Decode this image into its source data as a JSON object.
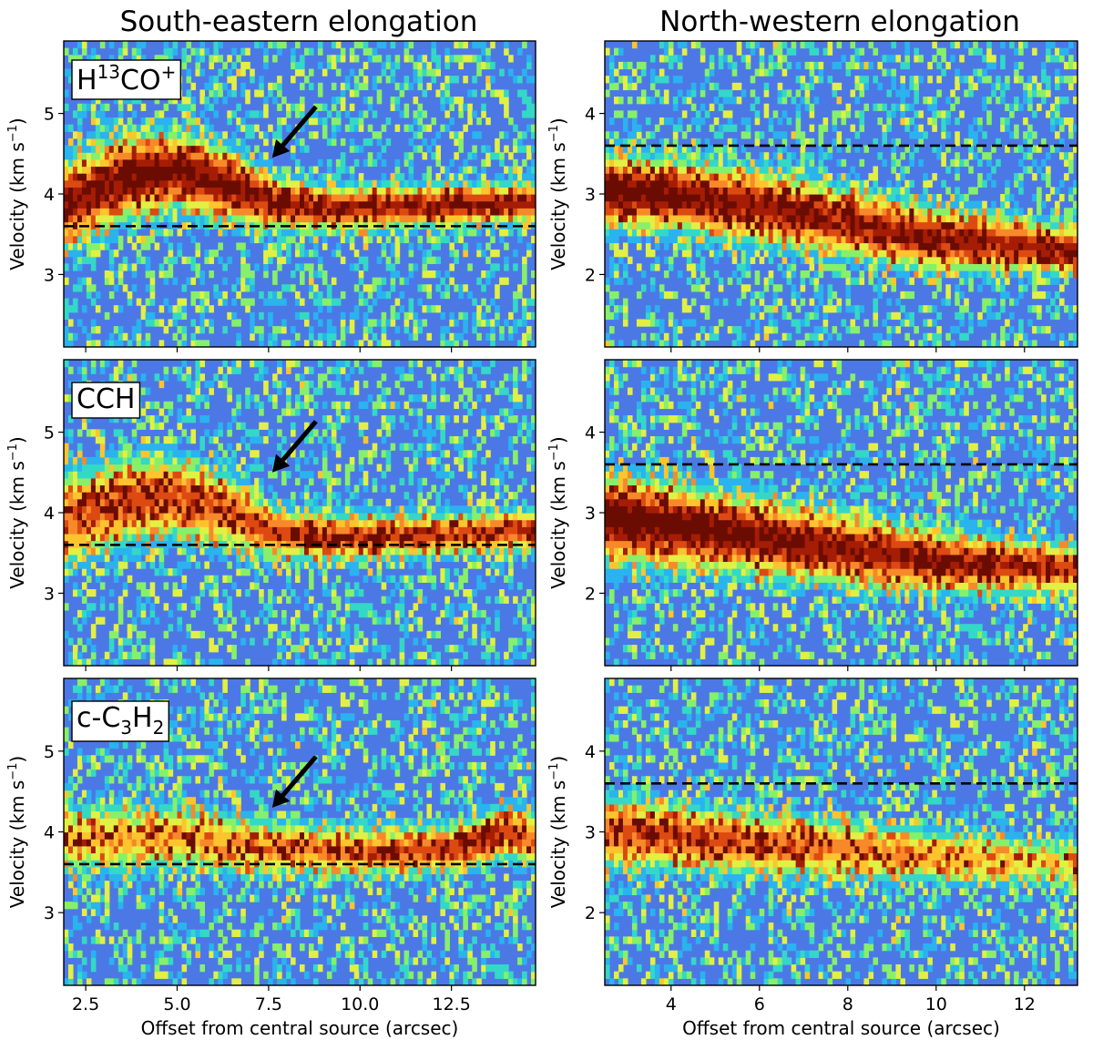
{
  "figure": {
    "column_titles": [
      "South-eastern elongation",
      "North-western elongation"
    ],
    "xlabel": "Offset from central source (arcsec)",
    "ylabel_main": "Velocity (km s",
    "ylabel_sup": "−1",
    "ylabel_close": ")"
  },
  "colors": {
    "background_low": "#4c78e6",
    "colormap": [
      "#4c78e6",
      "#2ab3ee",
      "#34d8c6",
      "#86f06a",
      "#e2f043",
      "#fdc42e",
      "#f8892a",
      "#dc4a12",
      "#a51d05",
      "#6b0c02"
    ],
    "dashed_line": "#000000",
    "arrow": "#000000"
  },
  "chart_data": [
    {
      "type": "heatmap",
      "panel": "se-h13co",
      "molecule": "H13CO+",
      "molecule_label": {
        "base": "H",
        "sup1": "13",
        "mid": "CO",
        "sup2": "+"
      },
      "xlim": [
        1.9,
        14.8
      ],
      "ylim": [
        2.1,
        5.9
      ],
      "xticks": [
        2.5,
        5.0,
        7.5,
        10.0,
        12.5
      ],
      "yticks": [
        3,
        4,
        5
      ],
      "systemic_velocity": 3.6,
      "arrow_target": [
        7.6,
        4.45
      ],
      "ridge": [
        [
          1.9,
          3.85
        ],
        [
          3.5,
          4.2
        ],
        [
          5.0,
          4.3
        ],
        [
          6.5,
          4.1
        ],
        [
          7.6,
          3.9
        ],
        [
          9.0,
          3.82
        ],
        [
          12.0,
          3.85
        ],
        [
          14.8,
          3.9
        ]
      ],
      "ridge_width": [
        [
          1.9,
          0.55
        ],
        [
          4.0,
          0.5
        ],
        [
          6.5,
          0.45
        ],
        [
          7.6,
          0.35
        ],
        [
          9.0,
          0.28
        ],
        [
          14.8,
          0.25
        ]
      ],
      "ridge_peak": [
        [
          1.9,
          0.85
        ],
        [
          4.0,
          0.95
        ],
        [
          6.5,
          0.9
        ],
        [
          8.0,
          0.85
        ],
        [
          10.0,
          0.85
        ],
        [
          14.8,
          0.85
        ]
      ],
      "show_xticklabels": false,
      "show_xlabel": false
    },
    {
      "type": "heatmap",
      "panel": "nw-h13co",
      "molecule": "H13CO+",
      "xlim": [
        2.5,
        13.2
      ],
      "ylim": [
        1.1,
        4.9
      ],
      "xticks": [
        4,
        6,
        8,
        10,
        12
      ],
      "yticks": [
        2,
        3,
        4
      ],
      "systemic_velocity": 3.6,
      "ridge": [
        [
          2.5,
          3.05
        ],
        [
          4.0,
          3.0
        ],
        [
          6.0,
          2.85
        ],
        [
          8.0,
          2.65
        ],
        [
          10.0,
          2.45
        ],
        [
          13.2,
          2.3
        ]
      ],
      "ridge_width": [
        [
          2.5,
          0.45
        ],
        [
          8.0,
          0.45
        ],
        [
          13.2,
          0.3
        ]
      ],
      "ridge_peak": [
        [
          2.5,
          1.0
        ],
        [
          4.0,
          0.92
        ],
        [
          8.0,
          0.82
        ],
        [
          10.0,
          0.85
        ],
        [
          13.2,
          0.85
        ]
      ],
      "show_xticklabels": false,
      "show_xlabel": false
    },
    {
      "type": "heatmap",
      "panel": "se-cch",
      "molecule": "CCH",
      "molecule_label": {
        "base": "CCH"
      },
      "xlim": [
        1.9,
        14.8
      ],
      "ylim": [
        2.1,
        5.9
      ],
      "xticks": [
        2.5,
        5.0,
        7.5,
        10.0,
        12.5
      ],
      "yticks": [
        3,
        4,
        5
      ],
      "systemic_velocity": 3.6,
      "arrow_target": [
        7.6,
        4.5
      ],
      "ridge": [
        [
          1.9,
          3.9
        ],
        [
          3.5,
          4.15
        ],
        [
          5.0,
          4.2
        ],
        [
          6.5,
          4.0
        ],
        [
          7.6,
          3.75
        ],
        [
          9.0,
          3.7
        ],
        [
          12.0,
          3.72
        ],
        [
          14.8,
          3.8
        ]
      ],
      "ridge_width": [
        [
          1.9,
          0.6
        ],
        [
          4.0,
          0.55
        ],
        [
          6.5,
          0.45
        ],
        [
          7.6,
          0.3
        ],
        [
          14.8,
          0.25
        ]
      ],
      "ridge_peak": [
        [
          1.9,
          0.7
        ],
        [
          4.0,
          0.75
        ],
        [
          6.5,
          0.72
        ],
        [
          8.0,
          0.8
        ],
        [
          12.0,
          0.75
        ],
        [
          14.8,
          0.78
        ]
      ],
      "show_xticklabels": false,
      "show_xlabel": false
    },
    {
      "type": "heatmap",
      "panel": "nw-cch",
      "molecule": "CCH",
      "xlim": [
        2.5,
        13.2
      ],
      "ylim": [
        1.1,
        4.9
      ],
      "xticks": [
        4,
        6,
        8,
        10,
        12
      ],
      "yticks": [
        2,
        3,
        4
      ],
      "systemic_velocity": 3.6,
      "ridge": [
        [
          2.5,
          2.95
        ],
        [
          4.0,
          2.85
        ],
        [
          6.0,
          2.7
        ],
        [
          8.0,
          2.55
        ],
        [
          10.0,
          2.4
        ],
        [
          13.2,
          2.3
        ]
      ],
      "ridge_width": [
        [
          2.5,
          0.55
        ],
        [
          8.0,
          0.45
        ],
        [
          13.2,
          0.3
        ]
      ],
      "ridge_peak": [
        [
          2.5,
          1.0
        ],
        [
          4.0,
          0.95
        ],
        [
          8.0,
          0.88
        ],
        [
          10.0,
          0.85
        ],
        [
          13.2,
          0.8
        ]
      ],
      "show_xticklabels": false,
      "show_xlabel": false
    },
    {
      "type": "heatmap",
      "panel": "se-cc3h2",
      "molecule": "c-C3H2",
      "molecule_label": {
        "base": "c-C",
        "sub1": "3",
        "mid": "H",
        "sub2": "2"
      },
      "xlim": [
        1.9,
        14.8
      ],
      "ylim": [
        2.1,
        5.9
      ],
      "xticks": [
        2.5,
        5.0,
        7.5,
        10.0,
        12.5
      ],
      "xticklabels": [
        "2.5",
        "5.0",
        "7.5",
        "10.0",
        "12.5"
      ],
      "yticks": [
        3,
        4,
        5
      ],
      "systemic_velocity": 3.6,
      "arrow_target": [
        7.6,
        4.3
      ],
      "ridge": [
        [
          1.9,
          3.9
        ],
        [
          5.0,
          3.95
        ],
        [
          7.6,
          3.8
        ],
        [
          10.0,
          3.75
        ],
        [
          12.5,
          3.8
        ],
        [
          14.0,
          4.0
        ],
        [
          14.8,
          3.9
        ]
      ],
      "ridge_width": [
        [
          1.9,
          0.45
        ],
        [
          7.6,
          0.35
        ],
        [
          12.5,
          0.28
        ],
        [
          14.8,
          0.35
        ]
      ],
      "ridge_peak": [
        [
          1.9,
          0.55
        ],
        [
          7.0,
          0.62
        ],
        [
          10.0,
          0.68
        ],
        [
          13.5,
          0.82
        ],
        [
          14.8,
          0.7
        ]
      ],
      "show_xticklabels": true,
      "show_xlabel": true
    },
    {
      "type": "heatmap",
      "panel": "nw-cc3h2",
      "molecule": "c-C3H2",
      "xlim": [
        2.5,
        13.2
      ],
      "ylim": [
        1.1,
        4.9
      ],
      "xticks": [
        4,
        6,
        8,
        10,
        12
      ],
      "xticklabels": [
        "4",
        "6",
        "8",
        "10",
        "12"
      ],
      "yticks": [
        2,
        3,
        4
      ],
      "systemic_velocity": 3.6,
      "ridge": [
        [
          2.5,
          3.0
        ],
        [
          4.0,
          2.95
        ],
        [
          6.0,
          2.85
        ],
        [
          8.0,
          2.8
        ],
        [
          10.0,
          2.7
        ],
        [
          13.2,
          2.6
        ]
      ],
      "ridge_width": [
        [
          2.5,
          0.45
        ],
        [
          9.0,
          0.35
        ],
        [
          13.2,
          0.3
        ]
      ],
      "ridge_peak": [
        [
          2.5,
          0.72
        ],
        [
          4.0,
          0.75
        ],
        [
          7.0,
          0.7
        ],
        [
          9.0,
          0.62
        ],
        [
          13.2,
          0.45
        ]
      ],
      "show_xticklabels": true,
      "show_xlabel": true
    }
  ]
}
